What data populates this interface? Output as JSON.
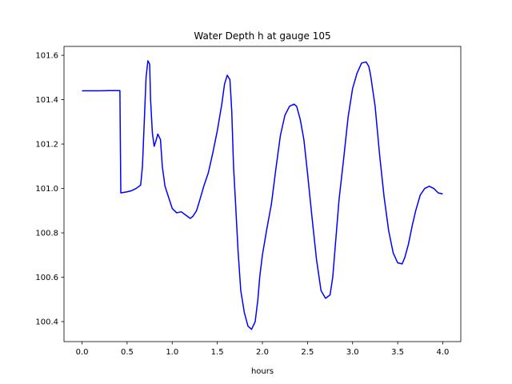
{
  "chart_data": {
    "type": "line",
    "title": "Water Depth h at gauge 105",
    "xlabel": "hours",
    "ylabel": "",
    "xlim": [
      -0.2,
      4.2
    ],
    "ylim": [
      100.31,
      101.64
    ],
    "x_ticks": [
      0.0,
      0.5,
      1.0,
      1.5,
      2.0,
      2.5,
      3.0,
      3.5,
      4.0
    ],
    "x_tick_labels": [
      "0.0",
      "0.5",
      "1.0",
      "1.5",
      "2.0",
      "2.5",
      "3.0",
      "3.5",
      "4.0"
    ],
    "y_ticks": [
      100.4,
      100.6,
      100.8,
      101.0,
      101.2,
      101.4,
      101.6
    ],
    "y_tick_labels": [
      "100.4",
      "100.6",
      "100.8",
      "101.0",
      "101.2",
      "101.4",
      "101.6"
    ],
    "grid": false,
    "series": [
      {
        "color": "#0000ff",
        "x": [
          0.0,
          0.2,
          0.3,
          0.42,
          0.425,
          0.43,
          0.5,
          0.55,
          0.6,
          0.65,
          0.67,
          0.69,
          0.71,
          0.73,
          0.75,
          0.76,
          0.78,
          0.8,
          0.82,
          0.84,
          0.87,
          0.89,
          0.92,
          0.96,
          1.0,
          1.05,
          1.1,
          1.15,
          1.2,
          1.23,
          1.27,
          1.3,
          1.35,
          1.4,
          1.45,
          1.5,
          1.55,
          1.58,
          1.61,
          1.64,
          1.66,
          1.68,
          1.7,
          1.73,
          1.76,
          1.8,
          1.84,
          1.88,
          1.92,
          1.95,
          1.97,
          2.0,
          2.05,
          2.1,
          2.15,
          2.2,
          2.25,
          2.3,
          2.35,
          2.38,
          2.42,
          2.46,
          2.5,
          2.55,
          2.6,
          2.65,
          2.7,
          2.75,
          2.78,
          2.81,
          2.85,
          2.9,
          2.95,
          3.0,
          3.05,
          3.1,
          3.15,
          3.18,
          3.2,
          3.25,
          3.3,
          3.35,
          3.4,
          3.45,
          3.5,
          3.55,
          3.58,
          3.62,
          3.66,
          3.7,
          3.75,
          3.8,
          3.85,
          3.9,
          3.95,
          4.0
        ],
        "y": [
          101.44,
          101.44,
          101.441,
          101.441,
          101.2,
          100.98,
          100.985,
          100.99,
          101.0,
          101.015,
          101.1,
          101.3,
          101.5,
          101.575,
          101.56,
          101.4,
          101.25,
          101.19,
          101.215,
          101.245,
          101.22,
          101.1,
          101.01,
          100.96,
          100.91,
          100.89,
          100.895,
          100.88,
          100.865,
          100.875,
          100.9,
          100.94,
          101.01,
          101.07,
          101.16,
          101.26,
          101.38,
          101.47,
          101.51,
          101.49,
          101.35,
          101.1,
          100.95,
          100.72,
          100.54,
          100.44,
          100.38,
          100.365,
          100.4,
          100.5,
          100.6,
          100.7,
          100.82,
          100.93,
          101.09,
          101.24,
          101.33,
          101.37,
          101.38,
          101.37,
          101.31,
          101.22,
          101.07,
          100.87,
          100.68,
          100.54,
          100.505,
          100.52,
          100.6,
          100.75,
          100.95,
          101.13,
          101.32,
          101.45,
          101.52,
          101.565,
          101.57,
          101.55,
          101.51,
          101.37,
          101.15,
          100.96,
          100.81,
          100.71,
          100.665,
          100.66,
          100.69,
          100.75,
          100.83,
          100.9,
          100.97,
          101.0,
          101.01,
          101.0,
          100.98,
          100.975
        ]
      }
    ]
  }
}
